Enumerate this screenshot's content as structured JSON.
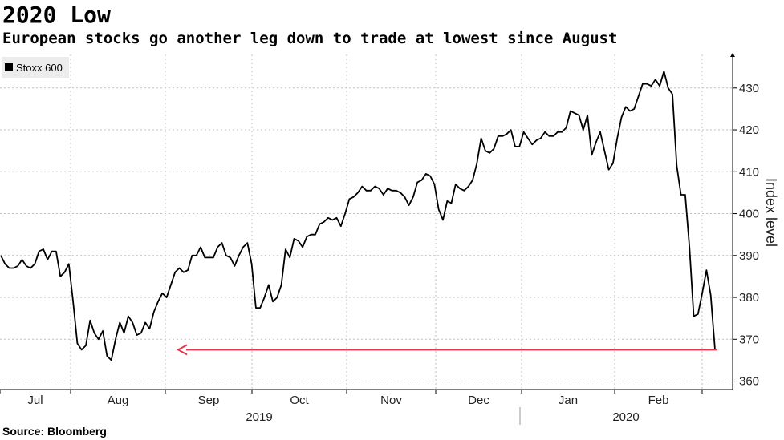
{
  "header": {
    "title": "2020 Low",
    "subtitle": "European stocks go another leg down to trade at lowest since August"
  },
  "footer": {
    "source": "Source: Bloomberg"
  },
  "colors": {
    "line": "#000000",
    "arrow": "#e8354a",
    "grid": "#bfbfbf",
    "legend_bg": "#ececec"
  },
  "chart_data": {
    "type": "line",
    "title": "2020 Low",
    "subtitle": "European stocks go another leg down to trade at lowest since August",
    "ylabel": "Index level",
    "ylim": [
      358,
      438
    ],
    "yticks": [
      360,
      370,
      380,
      390,
      400,
      410,
      420,
      430
    ],
    "months": [
      "Jul",
      "Aug",
      "Sep",
      "Oct",
      "Nov",
      "Dec",
      "Jan",
      "Feb"
    ],
    "years": [
      "2019",
      "2020"
    ],
    "legend": [
      "Stoxx 600"
    ],
    "annotation": {
      "type": "arrow",
      "value": 367.5,
      "note": "lowest since August"
    },
    "series": [
      {
        "name": "Stoxx 600",
        "values": [
          390,
          388,
          387,
          387,
          387.5,
          389,
          387.5,
          387,
          388,
          391,
          391.5,
          389,
          391,
          391,
          385,
          386,
          388,
          379,
          369,
          367.5,
          368.5,
          374.5,
          371.5,
          370,
          372,
          366,
          365,
          370,
          374,
          371.5,
          375.5,
          374,
          371,
          371.5,
          374,
          372.5,
          376.5,
          379,
          381,
          380,
          383,
          386,
          387,
          386,
          386.5,
          390,
          390,
          392,
          389.5,
          389.5,
          389.5,
          392,
          393,
          390,
          389.5,
          387.5,
          390,
          392,
          393,
          388,
          377.5,
          377.5,
          380,
          383,
          379,
          380,
          383,
          391.5,
          389.5,
          394,
          393.5,
          392,
          394.5,
          395,
          395,
          397.5,
          398,
          399,
          398.5,
          399,
          397,
          400,
          403.5,
          404,
          405,
          406.5,
          405.5,
          405.5,
          406.5,
          406,
          404.5,
          406,
          405.5,
          405.5,
          405,
          404,
          402,
          404,
          407.5,
          408,
          409.5,
          409,
          407,
          401,
          398.5,
          403,
          402.5,
          407,
          406,
          405.5,
          406.5,
          408,
          412,
          418,
          415,
          414.5,
          415.5,
          418.5,
          418.5,
          419,
          420,
          416,
          416,
          419.5,
          418,
          416.5,
          417.5,
          418,
          419.5,
          418.5,
          418.5,
          419.5,
          419.5,
          420.5,
          424.5,
          424,
          423.5,
          420,
          423.5,
          414,
          417,
          419.5,
          415,
          410.5,
          412,
          418,
          423,
          425.5,
          424.5,
          425,
          428,
          431,
          431,
          430.5,
          432,
          430.5,
          434,
          430,
          428.5,
          411.5,
          404.5,
          404.5,
          392,
          375.5,
          376,
          381,
          386.5,
          380.5,
          367.5
        ]
      }
    ]
  }
}
